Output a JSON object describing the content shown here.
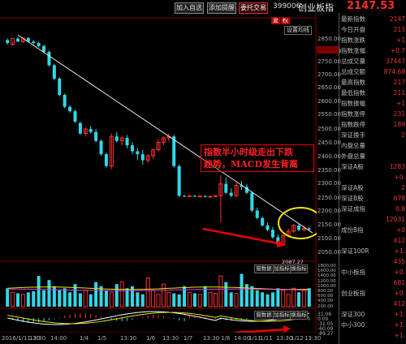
{
  "toolbar": {
    "buttons": [
      "加入自选",
      "添加提醒",
      "委托交易"
    ],
    "code": "399006",
    "name": "创业板指",
    "price": "2147.53"
  },
  "chart_header": {
    "tabs": [
      "复",
      "权"
    ],
    "setting": "设置均线"
  },
  "price_axis": [
    "2850.00",
    "2792.40",
    "2750.00",
    "2700.00",
    "2650.00",
    "2600.00",
    "2550.00",
    "2500.00",
    "2450.00",
    "2400.00",
    "2350.00",
    "2300.00",
    "2250.00",
    "2200.00",
    "2150.00",
    "2100.00",
    "2050.00"
  ],
  "annotation": {
    "line1": "指数半小时级走出下跌",
    "line2": "趋势，MACD发生背离"
  },
  "low_label": "2087.27",
  "mini_buttons_1": [
    "窗数据",
    "加指标",
    "换指标"
  ],
  "mini_buttons_2": [
    "窗数据",
    "加指标",
    "换指标"
  ],
  "volume_axis": [
    "1800.00",
    "1600.00",
    "1400.00",
    "1200.00",
    "1000.00",
    "800.00",
    "600.00",
    "400.00",
    "200.00"
  ],
  "macd_axis": [
    "31.06",
    "0.00",
    "-31.05",
    "-60.09",
    "-89.27"
  ],
  "x_axis": [
    "2016/1/11.30",
    "13:30",
    "14:00",
    "1/4",
    "1/5",
    "13:30",
    "1/6",
    "13:30",
    "1/7",
    "13:30",
    "1/8",
    "14:00",
    "1/11",
    "1/11",
    "13:30",
    "1/12",
    "13:30"
  ],
  "panel": [
    {
      "label": "最新指数",
      "value": "2147"
    },
    {
      "label": "今日开盘",
      "value": "213"
    },
    {
      "label": "指数涨跌",
      "value": "+1"
    },
    {
      "label": "指数涨幅",
      "value": "+0.7"
    },
    {
      "label": "总成交量",
      "value": "37447"
    },
    {
      "label": "总成交额",
      "value": "874.68"
    },
    {
      "label": "最高指数",
      "value": "217"
    },
    {
      "label": "最低指数",
      "value": "211"
    },
    {
      "label": "指数振幅",
      "value": "+1"
    },
    {
      "label": "指数涨停",
      "value": "231"
    },
    {
      "label": "指数跌停",
      "value": "189"
    },
    {
      "label": "深证换手",
      "value": "2"
    },
    {
      "label": "内盘总量",
      "value": ""
    },
    {
      "label": "外盘总量",
      "value": ""
    },
    {
      "label": "深证A股",
      "value": "1283"
    },
    {
      "label": "",
      "value": "+0."
    },
    {
      "label": "深证A股",
      "value": "2"
    },
    {
      "label": "深证B股",
      "value": "678"
    },
    {
      "label": "深证成指",
      "value": "0.8"
    },
    {
      "label": "",
      "value": "12031"
    },
    {
      "label": "成份B指",
      "value": "+0"
    },
    {
      "label": "",
      "value": "412"
    },
    {
      "label": "深证100R",
      "value": "+1."
    },
    {
      "label": "",
      "value": "435"
    },
    {
      "label": "中小板指",
      "value": "+0."
    },
    {
      "label": "",
      "value": "681"
    },
    {
      "label": "创业板指",
      "value": "+0."
    },
    {
      "label": "",
      "value": "412"
    },
    {
      "label": "深证300",
      "value": "+1."
    },
    {
      "label": "中小300",
      "value": "+1."
    },
    {
      "label": "",
      "value": "+1."
    }
  ],
  "chart_data": {
    "type": "candlestick",
    "title": "",
    "ylim": [
      2050,
      2860
    ],
    "candles": [
      [
        2785,
        2790,
        2775,
        2770
      ],
      [
        2770,
        2780,
        2790,
        2765
      ],
      [
        2790,
        2795,
        2780,
        2778
      ],
      [
        2780,
        2790,
        2792,
        2775
      ],
      [
        2792,
        2795,
        2780,
        2778
      ],
      [
        2780,
        2785,
        2775,
        2770
      ],
      [
        2775,
        2780,
        2765,
        2760
      ],
      [
        2765,
        2770,
        2745,
        2740
      ],
      [
        2745,
        2750,
        2700,
        2695
      ],
      [
        2700,
        2705,
        2655,
        2650
      ],
      [
        2655,
        2660,
        2600,
        2595
      ],
      [
        2600,
        2605,
        2560,
        2555
      ],
      [
        2560,
        2565,
        2545,
        2540
      ],
      [
        2545,
        2550,
        2510,
        2505
      ],
      [
        2505,
        2510,
        2470,
        2465
      ],
      [
        2470,
        2490,
        2485,
        2460
      ],
      [
        2485,
        2495,
        2475,
        2470
      ],
      [
        2475,
        2485,
        2445,
        2440
      ],
      [
        2445,
        2450,
        2400,
        2395
      ],
      [
        2400,
        2405,
        2360,
        2355
      ],
      [
        2360,
        2470,
        2460,
        2350
      ],
      [
        2460,
        2475,
        2445,
        2440
      ],
      [
        2445,
        2460,
        2455,
        2430
      ],
      [
        2455,
        2465,
        2430,
        2420
      ],
      [
        2430,
        2440,
        2410,
        2400
      ],
      [
        2410,
        2420,
        2400,
        2380
      ],
      [
        2400,
        2415,
        2380,
        2365
      ],
      [
        2380,
        2400,
        2395,
        2370
      ],
      [
        2395,
        2420,
        2415,
        2385
      ],
      [
        2415,
        2450,
        2440,
        2410
      ],
      [
        2440,
        2460,
        2455,
        2430
      ],
      [
        2455,
        2470,
        2460,
        2445
      ],
      [
        2460,
        2465,
        2360,
        2355
      ],
      [
        2360,
        2365,
        2260,
        2255
      ],
      [
        2260,
        2262,
        2258,
        2255
      ],
      [
        2258,
        2262,
        2260,
        2255
      ],
      [
        2260,
        2262,
        2258,
        2256
      ],
      [
        2258,
        2261,
        2259,
        2255
      ],
      [
        2259,
        2262,
        2257,
        2255
      ],
      [
        2257,
        2260,
        2258,
        2254
      ],
      [
        2258,
        2262,
        2260,
        2255
      ],
      [
        2260,
        2330,
        2300,
        2170
      ],
      [
        2300,
        2320,
        2270,
        2265
      ],
      [
        2270,
        2285,
        2260,
        2255
      ],
      [
        2260,
        2305,
        2295,
        2255
      ],
      [
        2295,
        2310,
        2290,
        2280
      ],
      [
        2290,
        2300,
        2270,
        2265
      ],
      [
        2270,
        2275,
        2210,
        2205
      ],
      [
        2210,
        2220,
        2185,
        2180
      ],
      [
        2185,
        2190,
        2160,
        2155
      ],
      [
        2160,
        2170,
        2145,
        2140
      ],
      [
        2145,
        2155,
        2120,
        2115
      ],
      [
        2120,
        2130,
        2095,
        2087
      ],
      [
        2095,
        2130,
        2125,
        2090
      ],
      [
        2125,
        2150,
        2140,
        2120
      ],
      [
        2140,
        2165,
        2160,
        2135
      ],
      [
        2160,
        2165,
        2145,
        2140
      ],
      [
        2145,
        2160,
        2150,
        2140
      ],
      [
        2150,
        2155,
        2147,
        2140
      ]
    ],
    "volume": [
      900,
      700,
      650,
      600,
      700,
      750,
      1500,
      800,
      1300,
      1000,
      800,
      900,
      700,
      1100,
      650,
      800,
      600,
      1200,
      1000,
      800,
      700,
      1100,
      1200,
      900,
      1000,
      700,
      600,
      1400,
      800,
      600,
      1100,
      700,
      650,
      600,
      1000,
      700,
      650,
      600,
      1000,
      700,
      650,
      1500,
      1200,
      700,
      650,
      1600,
      1100,
      1000,
      800,
      700,
      600,
      700,
      900,
      800,
      600,
      900,
      700,
      800,
      900
    ],
    "ylabel": "",
    "xlabel": ""
  }
}
